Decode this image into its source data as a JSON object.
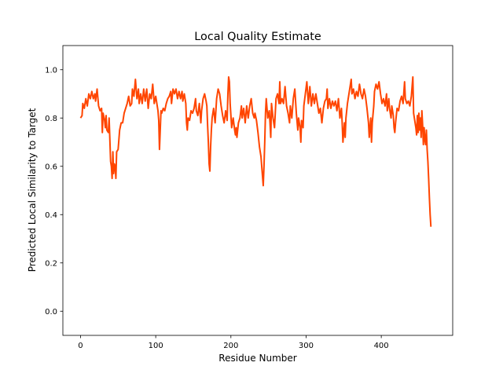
{
  "chart_data": {
    "type": "line",
    "title": "Local Quality Estimate",
    "xlabel": "Residue Number",
    "ylabel": "Predicted Local Similarity to Target",
    "xlim": [
      -23.5,
      495
    ],
    "ylim": [
      -0.1,
      1.1
    ],
    "xticks": [
      0,
      100,
      200,
      300,
      400
    ],
    "yticks": [
      0.0,
      0.2,
      0.4,
      0.6,
      0.8,
      1.0
    ],
    "ytick_labels": [
      "0.0",
      "0.2",
      "0.4",
      "0.6",
      "0.8",
      "1.0"
    ],
    "grid": false,
    "legend": "none",
    "series": [
      {
        "color": "#ff4500",
        "points": [
          [
            0,
            0.8
          ],
          [
            2,
            0.81
          ],
          [
            3,
            0.86
          ],
          [
            5,
            0.84
          ],
          [
            7,
            0.88
          ],
          [
            9,
            0.85
          ],
          [
            11,
            0.9
          ],
          [
            13,
            0.88
          ],
          [
            15,
            0.91
          ],
          [
            17,
            0.88
          ],
          [
            19,
            0.9
          ],
          [
            20,
            0.87
          ],
          [
            22,
            0.92
          ],
          [
            24,
            0.85
          ],
          [
            26,
            0.83
          ],
          [
            28,
            0.84
          ],
          [
            29,
            0.74
          ],
          [
            30,
            0.82
          ],
          [
            32,
            0.79
          ],
          [
            33,
            0.76
          ],
          [
            34,
            0.81
          ],
          [
            35,
            0.75
          ],
          [
            37,
            0.74
          ],
          [
            38,
            0.8
          ],
          [
            39,
            0.71
          ],
          [
            40,
            0.62
          ],
          [
            41,
            0.6
          ],
          [
            42,
            0.55
          ],
          [
            43,
            0.66
          ],
          [
            44,
            0.57
          ],
          [
            45,
            0.61
          ],
          [
            46,
            0.6
          ],
          [
            47,
            0.55
          ],
          [
            48,
            0.66
          ],
          [
            50,
            0.67
          ],
          [
            52,
            0.75
          ],
          [
            54,
            0.78
          ],
          [
            56,
            0.78
          ],
          [
            58,
            0.82
          ],
          [
            60,
            0.84
          ],
          [
            62,
            0.86
          ],
          [
            64,
            0.89
          ],
          [
            66,
            0.85
          ],
          [
            68,
            0.86
          ],
          [
            69,
            0.92
          ],
          [
            71,
            0.89
          ],
          [
            73,
            0.96
          ],
          [
            75,
            0.88
          ],
          [
            77,
            0.92
          ],
          [
            78,
            0.86
          ],
          [
            80,
            0.9
          ],
          [
            82,
            0.86
          ],
          [
            84,
            0.92
          ],
          [
            86,
            0.87
          ],
          [
            88,
            0.92
          ],
          [
            90,
            0.84
          ],
          [
            92,
            0.9
          ],
          [
            94,
            0.88
          ],
          [
            96,
            0.94
          ],
          [
            98,
            0.86
          ],
          [
            100,
            0.89
          ],
          [
            102,
            0.85
          ],
          [
            103,
            0.83
          ],
          [
            104,
            0.79
          ],
          [
            105,
            0.67
          ],
          [
            106,
            0.75
          ],
          [
            107,
            0.83
          ],
          [
            108,
            0.82
          ],
          [
            110,
            0.84
          ],
          [
            112,
            0.83
          ],
          [
            114,
            0.86
          ],
          [
            116,
            0.88
          ],
          [
            118,
            0.89
          ],
          [
            120,
            0.91
          ],
          [
            121,
            0.86
          ],
          [
            123,
            0.92
          ],
          [
            125,
            0.9
          ],
          [
            127,
            0.92
          ],
          [
            129,
            0.88
          ],
          [
            131,
            0.91
          ],
          [
            133,
            0.88
          ],
          [
            135,
            0.91
          ],
          [
            136,
            0.87
          ],
          [
            138,
            0.9
          ],
          [
            140,
            0.86
          ],
          [
            141,
            0.78
          ],
          [
            142,
            0.75
          ],
          [
            143,
            0.8
          ],
          [
            145,
            0.79
          ],
          [
            147,
            0.83
          ],
          [
            149,
            0.82
          ],
          [
            151,
            0.84
          ],
          [
            153,
            0.88
          ],
          [
            154,
            0.83
          ],
          [
            156,
            0.81
          ],
          [
            158,
            0.86
          ],
          [
            160,
            0.78
          ],
          [
            161,
            0.83
          ],
          [
            163,
            0.88
          ],
          [
            165,
            0.9
          ],
          [
            167,
            0.87
          ],
          [
            168,
            0.85
          ],
          [
            169,
            0.77
          ],
          [
            170,
            0.7
          ],
          [
            171,
            0.61
          ],
          [
            172,
            0.58
          ],
          [
            173,
            0.68
          ],
          [
            174,
            0.75
          ],
          [
            175,
            0.8
          ],
          [
            177,
            0.84
          ],
          [
            179,
            0.78
          ],
          [
            181,
            0.88
          ],
          [
            183,
            0.92
          ],
          [
            185,
            0.9
          ],
          [
            187,
            0.85
          ],
          [
            189,
            0.81
          ],
          [
            191,
            0.78
          ],
          [
            193,
            0.83
          ],
          [
            195,
            0.79
          ],
          [
            196,
            0.9
          ],
          [
            197,
            0.97
          ],
          [
            198,
            0.95
          ],
          [
            199,
            0.86
          ],
          [
            201,
            0.76
          ],
          [
            203,
            0.8
          ],
          [
            205,
            0.75
          ],
          [
            206,
            0.73
          ],
          [
            207,
            0.76
          ],
          [
            208,
            0.72
          ],
          [
            210,
            0.78
          ],
          [
            212,
            0.8
          ],
          [
            214,
            0.85
          ],
          [
            215,
            0.8
          ],
          [
            217,
            0.84
          ],
          [
            219,
            0.78
          ],
          [
            221,
            0.85
          ],
          [
            223,
            0.8
          ],
          [
            225,
            0.85
          ],
          [
            227,
            0.88
          ],
          [
            229,
            0.82
          ],
          [
            231,
            0.8
          ],
          [
            232,
            0.82
          ],
          [
            234,
            0.79
          ],
          [
            236,
            0.74
          ],
          [
            238,
            0.68
          ],
          [
            240,
            0.64
          ],
          [
            241,
            0.6
          ],
          [
            242,
            0.56
          ],
          [
            243,
            0.52
          ],
          [
            244,
            0.6
          ],
          [
            245,
            0.7
          ],
          [
            246,
            0.82
          ],
          [
            247,
            0.88
          ],
          [
            249,
            0.8
          ],
          [
            251,
            0.83
          ],
          [
            252,
            0.78
          ],
          [
            253,
            0.72
          ],
          [
            254,
            0.86
          ],
          [
            256,
            0.8
          ],
          [
            258,
            0.76
          ],
          [
            260,
            0.88
          ],
          [
            262,
            0.9
          ],
          [
            264,
            0.86
          ],
          [
            265,
            0.95
          ],
          [
            266,
            0.86
          ],
          [
            268,
            0.88
          ],
          [
            270,
            0.86
          ],
          [
            272,
            0.93
          ],
          [
            274,
            0.85
          ],
          [
            276,
            0.82
          ],
          [
            278,
            0.78
          ],
          [
            279,
            0.85
          ],
          [
            281,
            0.8
          ],
          [
            283,
            0.88
          ],
          [
            285,
            0.92
          ],
          [
            287,
            0.82
          ],
          [
            289,
            0.75
          ],
          [
            290,
            0.8
          ],
          [
            292,
            0.76
          ],
          [
            293,
            0.7
          ],
          [
            294,
            0.79
          ],
          [
            296,
            0.76
          ],
          [
            297,
            0.85
          ],
          [
            299,
            0.9
          ],
          [
            301,
            0.95
          ],
          [
            303,
            0.86
          ],
          [
            305,
            0.93
          ],
          [
            307,
            0.85
          ],
          [
            309,
            0.9
          ],
          [
            311,
            0.86
          ],
          [
            313,
            0.9
          ],
          [
            315,
            0.86
          ],
          [
            317,
            0.82
          ],
          [
            319,
            0.84
          ],
          [
            321,
            0.78
          ],
          [
            323,
            0.84
          ],
          [
            325,
            0.87
          ],
          [
            327,
            0.88
          ],
          [
            328,
            0.92
          ],
          [
            329,
            0.84
          ],
          [
            331,
            0.88
          ],
          [
            333,
            0.84
          ],
          [
            335,
            0.87
          ],
          [
            337,
            0.85
          ],
          [
            339,
            0.87
          ],
          [
            341,
            0.83
          ],
          [
            343,
            0.88
          ],
          [
            345,
            0.8
          ],
          [
            347,
            0.84
          ],
          [
            348,
            0.78
          ],
          [
            349,
            0.7
          ],
          [
            350,
            0.74
          ],
          [
            351,
            0.78
          ],
          [
            352,
            0.72
          ],
          [
            353,
            0.8
          ],
          [
            355,
            0.86
          ],
          [
            357,
            0.9
          ],
          [
            359,
            0.94
          ],
          [
            360,
            0.96
          ],
          [
            361,
            0.9
          ],
          [
            363,
            0.92
          ],
          [
            365,
            0.88
          ],
          [
            367,
            0.91
          ],
          [
            369,
            0.89
          ],
          [
            371,
            0.94
          ],
          [
            373,
            0.9
          ],
          [
            375,
            0.88
          ],
          [
            377,
            0.92
          ],
          [
            379,
            0.89
          ],
          [
            381,
            0.84
          ],
          [
            383,
            0.78
          ],
          [
            384,
            0.72
          ],
          [
            386,
            0.8
          ],
          [
            387,
            0.7
          ],
          [
            388,
            0.78
          ],
          [
            390,
            0.85
          ],
          [
            391,
            0.91
          ],
          [
            393,
            0.94
          ],
          [
            395,
            0.92
          ],
          [
            397,
            0.95
          ],
          [
            399,
            0.9
          ],
          [
            401,
            0.86
          ],
          [
            403,
            0.88
          ],
          [
            405,
            0.85
          ],
          [
            407,
            0.9
          ],
          [
            408,
            0.83
          ],
          [
            410,
            0.88
          ],
          [
            411,
            0.84
          ],
          [
            413,
            0.8
          ],
          [
            414,
            0.85
          ],
          [
            416,
            0.81
          ],
          [
            417,
            0.76
          ],
          [
            418,
            0.74
          ],
          [
            419,
            0.78
          ],
          [
            421,
            0.84
          ],
          [
            423,
            0.83
          ],
          [
            425,
            0.87
          ],
          [
            427,
            0.89
          ],
          [
            429,
            0.86
          ],
          [
            431,
            0.95
          ],
          [
            432,
            0.88
          ],
          [
            434,
            0.86
          ],
          [
            436,
            0.87
          ],
          [
            438,
            0.85
          ],
          [
            440,
            0.89
          ],
          [
            442,
            0.97
          ],
          [
            443,
            0.82
          ],
          [
            444,
            0.8
          ],
          [
            446,
            0.76
          ],
          [
            447,
            0.73
          ],
          [
            448,
            0.81
          ],
          [
            449,
            0.74
          ],
          [
            450,
            0.82
          ],
          [
            451,
            0.75
          ],
          [
            452,
            0.8
          ],
          [
            453,
            0.72
          ],
          [
            454,
            0.83
          ],
          [
            455,
            0.77
          ],
          [
            456,
            0.69
          ],
          [
            457,
            0.76
          ],
          [
            458,
            0.71
          ],
          [
            459,
            0.69
          ],
          [
            460,
            0.75
          ],
          [
            461,
            0.67
          ],
          [
            462,
            0.62
          ],
          [
            463,
            0.55
          ],
          [
            464,
            0.47
          ],
          [
            465,
            0.4
          ],
          [
            466,
            0.35
          ]
        ]
      }
    ]
  }
}
